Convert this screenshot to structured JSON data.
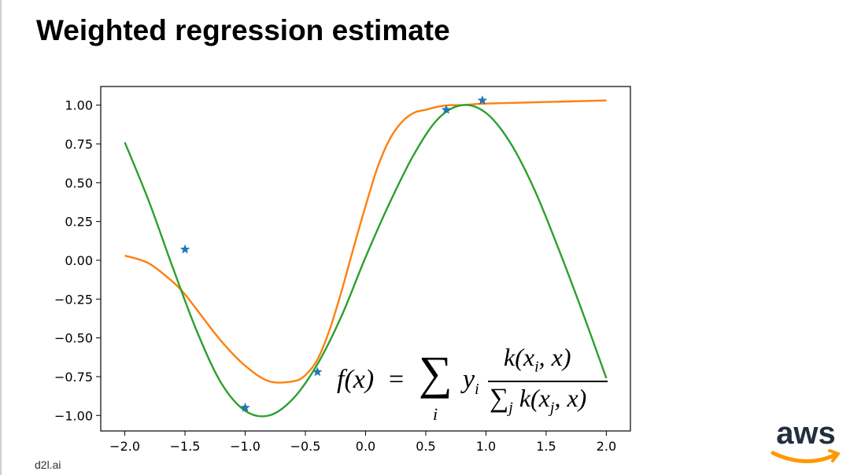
{
  "slide": {
    "title": "Weighted regression estimate",
    "footer": "d2l.ai",
    "logo_text": "aws"
  },
  "formula": {
    "fx": "f(x)",
    "equals": "=",
    "sum": "∑",
    "sum_index": "i",
    "y": "y",
    "y_sub": "i",
    "numerator": "k(x",
    "numerator_sub": "i",
    "numerator_tail": ", x)",
    "denominator_sum": "∑",
    "denominator_sum_sub": "j",
    "denominator": " k(x",
    "denominator_sub": "j",
    "denominator_tail": ", x)"
  },
  "colors": {
    "orange": "#ff7f0e",
    "green": "#2ca02c",
    "blue": "#1f77b4",
    "aws_text": "#232f3e",
    "aws_smile": "#ff9900"
  },
  "chart_data": {
    "type": "line",
    "xlim": [
      -2.2,
      2.2
    ],
    "ylim": [
      -1.1,
      1.12
    ],
    "xticks": [
      -2.0,
      -1.5,
      -1.0,
      -0.5,
      0.0,
      0.5,
      1.0,
      1.5,
      2.0
    ],
    "xtick_labels": [
      "−2.0",
      "−1.5",
      "−1.0",
      "−0.5",
      "0.0",
      "0.5",
      "1.0",
      "1.5",
      "2.0"
    ],
    "yticks": [
      1.0,
      0.75,
      0.5,
      0.25,
      0.0,
      -0.25,
      -0.5,
      -0.75,
      -1.0
    ],
    "ytick_labels": [
      "1.00",
      "0.75",
      "0.50",
      "0.25",
      "0.00",
      "−0.25",
      "−0.50",
      "−0.75",
      "−1.00"
    ],
    "grid": false,
    "series": [
      {
        "kind": "line",
        "color": "#ff7f0e",
        "x": [
          -2.0,
          -1.8,
          -1.6,
          -1.5,
          -1.4,
          -1.2,
          -1.0,
          -0.8,
          -0.6,
          -0.5,
          -0.4,
          -0.3,
          -0.2,
          -0.1,
          0.0,
          0.1,
          0.2,
          0.3,
          0.4,
          0.5,
          0.6,
          0.7,
          0.8,
          1.0,
          1.5,
          2.0
        ],
        "y": [
          0.03,
          -0.02,
          -0.14,
          -0.22,
          -0.32,
          -0.52,
          -0.68,
          -0.78,
          -0.78,
          -0.74,
          -0.64,
          -0.45,
          -0.2,
          0.08,
          0.35,
          0.6,
          0.78,
          0.89,
          0.95,
          0.97,
          0.99,
          1.0,
          1.0,
          1.01,
          1.02,
          1.03
        ]
      },
      {
        "kind": "line",
        "color": "#2ca02c",
        "x": [
          -2.0,
          -1.8,
          -1.6,
          -1.4,
          -1.2,
          -1.0,
          -0.8,
          -0.6,
          -0.4,
          -0.2,
          0.0,
          0.2,
          0.4,
          0.6,
          0.8,
          1.0,
          1.2,
          1.4,
          1.6,
          1.8,
          2.0
        ],
        "y": [
          0.76,
          0.38,
          -0.05,
          -0.46,
          -0.79,
          -0.97,
          -1.0,
          -0.89,
          -0.67,
          -0.36,
          0.02,
          0.37,
          0.68,
          0.91,
          1.0,
          0.95,
          0.76,
          0.46,
          0.08,
          -0.33,
          -0.76
        ]
      },
      {
        "kind": "scatter",
        "color": "#1f77b4",
        "x": [
          -1.5,
          -1.0,
          -0.4,
          0.67,
          0.97
        ],
        "y": [
          0.07,
          -0.95,
          -0.72,
          0.97,
          1.03
        ]
      }
    ]
  }
}
